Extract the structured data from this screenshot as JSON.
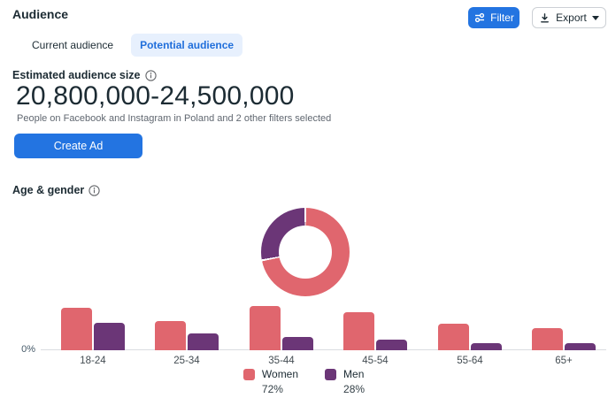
{
  "page": {
    "title": "Audience"
  },
  "toolbar": {
    "filter_label": "Filter",
    "export_label": "Export"
  },
  "tabs": [
    {
      "label": "Current audience",
      "active": false
    },
    {
      "label": "Potential audience",
      "active": true
    }
  ],
  "estimate": {
    "label": "Estimated audience size",
    "range": "20,800,000-24,500,000",
    "description": "People on Facebook and Instagram in Poland and 2 other filters selected",
    "create_ad_label": "Create Ad"
  },
  "age_gender_section": {
    "label": "Age & gender"
  },
  "legend": [
    {
      "label": "Women",
      "percent": "72%",
      "color": "#e0666e"
    },
    {
      "label": "Men",
      "percent": "28%",
      "color": "#6b3677"
    }
  ],
  "chart_data": [
    {
      "type": "pie",
      "subtype": "donut",
      "title": "",
      "slices": [
        {
          "label": "Women",
          "value": 72,
          "color": "#e0666e"
        },
        {
          "label": "Men",
          "value": 28,
          "color": "#6b3677"
        }
      ],
      "start_angle_deg": 0,
      "direction": "clockwise",
      "hole_ratio": 0.6
    },
    {
      "type": "bar",
      "title": "",
      "categories": [
        "18-24",
        "25-34",
        "35-44",
        "45-54",
        "55-64",
        "65+"
      ],
      "series": [
        {
          "name": "Women",
          "color": "#e0666e",
          "values": [
            15.0,
            10.3,
            15.6,
            13.4,
            9.4,
            7.8
          ]
        },
        {
          "name": "Men",
          "color": "#6b3677",
          "values": [
            9.7,
            5.9,
            4.7,
            3.8,
            2.5,
            2.5
          ]
        }
      ],
      "yticks": [
        "0%"
      ],
      "unit": "% of audience (estimated from bar heights)",
      "grid": false,
      "legend_position": "bottom"
    }
  ],
  "colors": {
    "primary_blue": "#2374e1",
    "tab_active_bg": "#e7f0fd",
    "tab_active_text": "#216fdb",
    "axis_line": "#dadde1"
  }
}
